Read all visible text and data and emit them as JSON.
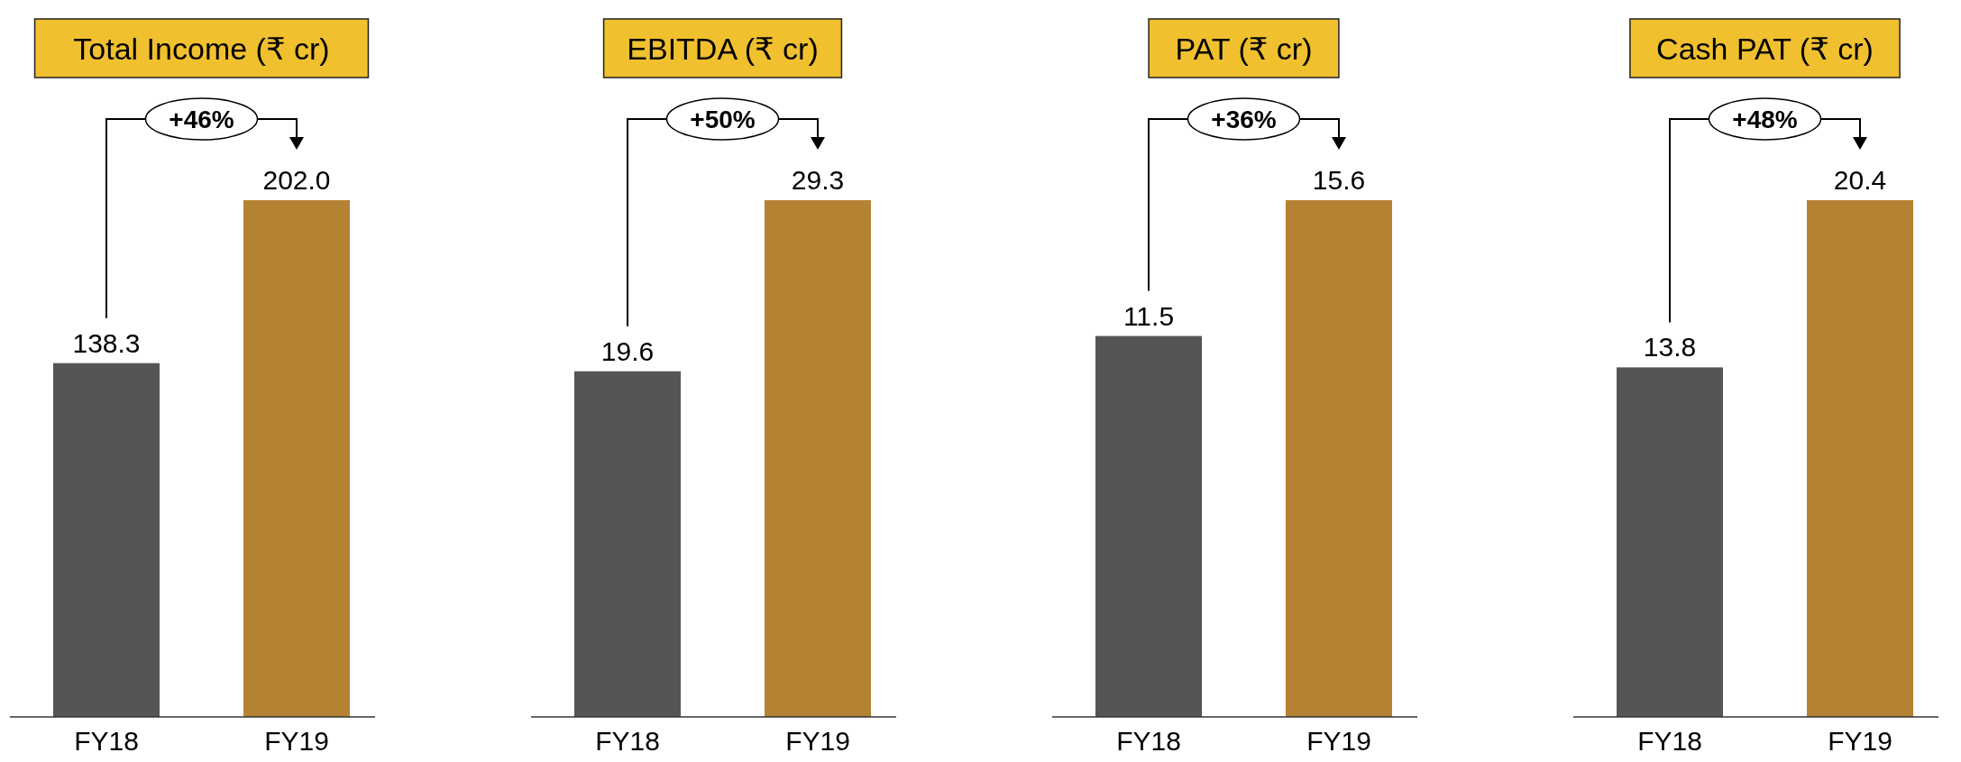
{
  "chart_data": [
    {
      "type": "bar",
      "title": "Total Income (₹ cr)",
      "categories": [
        "FY18",
        "FY19"
      ],
      "values": [
        138.3,
        202.0
      ],
      "value_labels": [
        "138.3",
        "202.0"
      ],
      "colors": [
        "#545554",
        "#b58233"
      ],
      "annotations": [
        "+46%"
      ]
    },
    {
      "type": "bar",
      "title": "EBITDA (₹ cr)",
      "categories": [
        "FY18",
        "FY19"
      ],
      "values": [
        19.6,
        29.3
      ],
      "value_labels": [
        "19.6",
        "29.3"
      ],
      "colors": [
        "#545554",
        "#b58233"
      ],
      "annotations": [
        "+50%"
      ]
    },
    {
      "type": "bar",
      "title": "PAT (₹ cr)",
      "categories": [
        "FY18",
        "FY19"
      ],
      "values": [
        11.5,
        15.6
      ],
      "value_labels": [
        "11.5",
        "15.6"
      ],
      "colors": [
        "#545554",
        "#b58233"
      ],
      "annotations": [
        "+36%"
      ]
    },
    {
      "type": "bar",
      "title": "Cash PAT (₹ cr)",
      "categories": [
        "FY18",
        "FY19"
      ],
      "values": [
        13.8,
        20.4
      ],
      "value_labels": [
        "13.8",
        "20.4"
      ],
      "colors": [
        "#545554",
        "#b58233"
      ],
      "annotations": [
        "+48%"
      ]
    }
  ]
}
